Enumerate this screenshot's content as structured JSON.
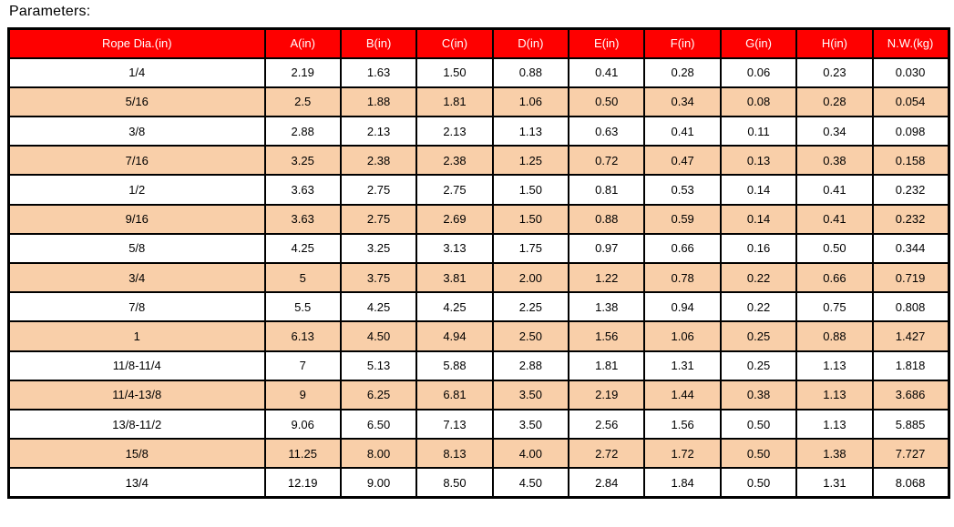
{
  "page": {
    "title": "Parameters:"
  },
  "colors": {
    "header_bg": "#fe0000",
    "header_text": "#ffffff",
    "row_bg": "#ffffff",
    "row_alt_bg": "#f9cfa9",
    "border": "#000000"
  },
  "table": {
    "columns": [
      "Rope Dia.(in)",
      "A(in)",
      "B(in)",
      "C(in)",
      "D(in)",
      "E(in)",
      "F(in)",
      "G(in)",
      "H(in)",
      "N.W.(kg)"
    ],
    "rows": [
      [
        "1/4",
        "2.19",
        "1.63",
        "1.50",
        "0.88",
        "0.41",
        "0.28",
        "0.06",
        "0.23",
        "0.030"
      ],
      [
        "5/16",
        "2.5",
        "1.88",
        "1.81",
        "1.06",
        "0.50",
        "0.34",
        "0.08",
        "0.28",
        "0.054"
      ],
      [
        "3/8",
        "2.88",
        "2.13",
        "2.13",
        "1.13",
        "0.63",
        "0.41",
        "0.11",
        "0.34",
        "0.098"
      ],
      [
        "7/16",
        "3.25",
        "2.38",
        "2.38",
        "1.25",
        "0.72",
        "0.47",
        "0.13",
        "0.38",
        "0.158"
      ],
      [
        "1/2",
        "3.63",
        "2.75",
        "2.75",
        "1.50",
        "0.81",
        "0.53",
        "0.14",
        "0.41",
        "0.232"
      ],
      [
        "9/16",
        "3.63",
        "2.75",
        "2.69",
        "1.50",
        "0.88",
        "0.59",
        "0.14",
        "0.41",
        "0.232"
      ],
      [
        "5/8",
        "4.25",
        "3.25",
        "3.13",
        "1.75",
        "0.97",
        "0.66",
        "0.16",
        "0.50",
        "0.344"
      ],
      [
        "3/4",
        "5",
        "3.75",
        "3.81",
        "2.00",
        "1.22",
        "0.78",
        "0.22",
        "0.66",
        "0.719"
      ],
      [
        "7/8",
        "5.5",
        "4.25",
        "4.25",
        "2.25",
        "1.38",
        "0.94",
        "0.22",
        "0.75",
        "0.808"
      ],
      [
        "1",
        "6.13",
        "4.50",
        "4.94",
        "2.50",
        "1.56",
        "1.06",
        "0.25",
        "0.88",
        "1.427"
      ],
      [
        "11/8-11/4",
        "7",
        "5.13",
        "5.88",
        "2.88",
        "1.81",
        "1.31",
        "0.25",
        "1.13",
        "1.818"
      ],
      [
        "11/4-13/8",
        "9",
        "6.25",
        "6.81",
        "3.50",
        "2.19",
        "1.44",
        "0.38",
        "1.13",
        "3.686"
      ],
      [
        "13/8-11/2",
        "9.06",
        "6.50",
        "7.13",
        "3.50",
        "2.56",
        "1.56",
        "0.50",
        "1.13",
        "5.885"
      ],
      [
        "15/8",
        "11.25",
        "8.00",
        "8.13",
        "4.00",
        "2.72",
        "1.72",
        "0.50",
        "1.38",
        "7.727"
      ],
      [
        "13/4",
        "12.19",
        "9.00",
        "8.50",
        "4.50",
        "2.84",
        "1.84",
        "0.50",
        "1.31",
        "8.068"
      ]
    ]
  }
}
